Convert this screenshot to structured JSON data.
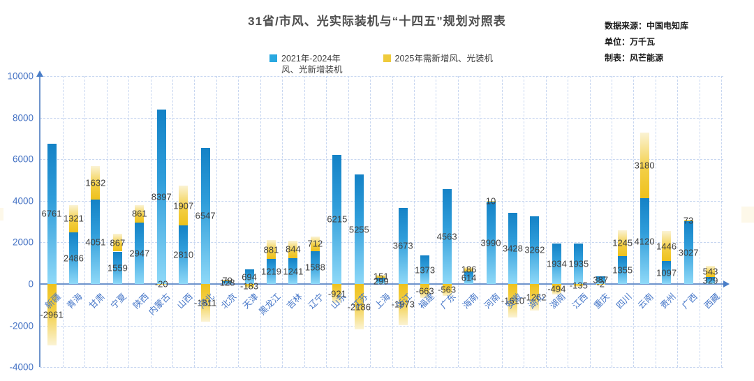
{
  "header": {
    "title": "31省/市风、光实际装机与“十四五”规划对照表",
    "source": "数据来源：中国电知库",
    "unit": "单位：万千瓦",
    "author": "制表：风芒能源"
  },
  "legend": {
    "items": [
      {
        "lines": [
          "2021年-2024年",
          "风、光新增装机"
        ],
        "color": "#29a8e0"
      },
      {
        "lines": [
          "2025年需新增风、光装机",
          ""
        ],
        "color": "#efcb3c"
      }
    ]
  },
  "chart_data": {
    "type": "bar",
    "stacked": true,
    "title": "31省/市风、光实际装机与“十四五”规划对照表",
    "ylabel": "万千瓦",
    "ylim": [
      -4000,
      10000
    ],
    "yticks": [
      10000,
      8000,
      6000,
      4000,
      2000,
      0,
      -2000,
      -4000
    ],
    "grid": true,
    "legend_position": "top",
    "categories": [
      "新疆",
      "青海",
      "甘肃",
      "宁夏",
      "陕西",
      "内蒙古",
      "山西",
      "河北",
      "北京",
      "天津",
      "黑龙江",
      "吉林",
      "辽宁",
      "山东",
      "江苏",
      "上海",
      "浙江",
      "福建",
      "广东",
      "海南",
      "河南",
      "安徽",
      "湖北",
      "湖南",
      "江西",
      "重庆",
      "四川",
      "云南",
      "贵州",
      "广西",
      "西藏"
    ],
    "series": [
      {
        "name": "2021年-2024年风、光新增装机",
        "color": "#2f9dda",
        "values": [
          6761,
          2486,
          4051,
          1559,
          2947,
          8397,
          2810,
          6547,
          128,
          694,
          1219,
          1241,
          1588,
          6215,
          5255,
          299,
          3673,
          1373,
          4563,
          614,
          3990,
          3428,
          3262,
          1934,
          1935,
          387,
          1355,
          4120,
          1097,
          3027,
          329
        ]
      },
      {
        "name": "2025年需新增风、光装机",
        "color": "#eec11c",
        "values": [
          -2961,
          1321,
          1632,
          867,
          861,
          -20,
          1907,
          -1811,
          79,
          -183,
          881,
          844,
          712,
          -921,
          -2186,
          151,
          -1973,
          -663,
          -563,
          186,
          10,
          -1610,
          -1262,
          -494,
          -135,
          -2,
          1245,
          3180,
          1446,
          73,
          543
        ]
      }
    ]
  },
  "colors": {
    "axis": "#6e94cc",
    "grid": "#c7d6f0",
    "tick_text": "#4472c4",
    "category_text": "#4576c8",
    "value_text": "#404040"
  }
}
